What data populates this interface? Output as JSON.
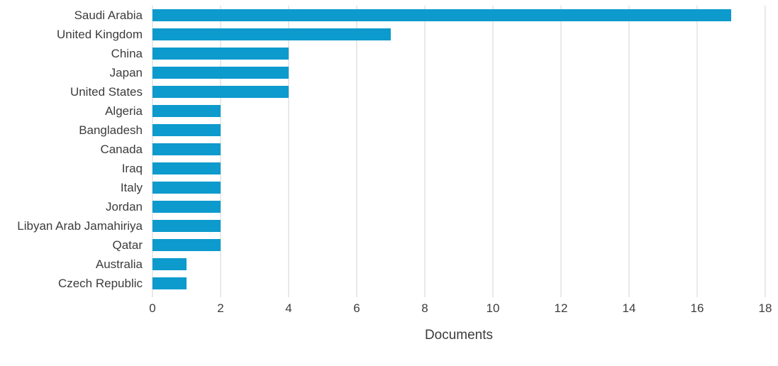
{
  "chart_data": {
    "type": "bar",
    "orientation": "horizontal",
    "title": "",
    "xlabel": "Documents",
    "ylabel": "",
    "categories": [
      "Saudi Arabia",
      "United Kingdom",
      "China",
      "Japan",
      "United States",
      "Algeria",
      "Bangladesh",
      "Canada",
      "Iraq",
      "Italy",
      "Jordan",
      "Libyan Arab Jamahiriya",
      "Qatar",
      "Australia",
      "Czech Republic"
    ],
    "values": [
      17,
      7,
      4,
      4,
      4,
      2,
      2,
      2,
      2,
      2,
      2,
      2,
      2,
      1,
      1
    ],
    "xlim": [
      0,
      18
    ],
    "xticks": [
      0,
      2,
      4,
      6,
      8,
      10,
      12,
      14,
      16,
      18
    ],
    "grid": "vertical",
    "legend": "none",
    "bar_color": "#0d9acd",
    "grid_color": "#e9e9e9",
    "text_color": "#3c3c3c"
  }
}
